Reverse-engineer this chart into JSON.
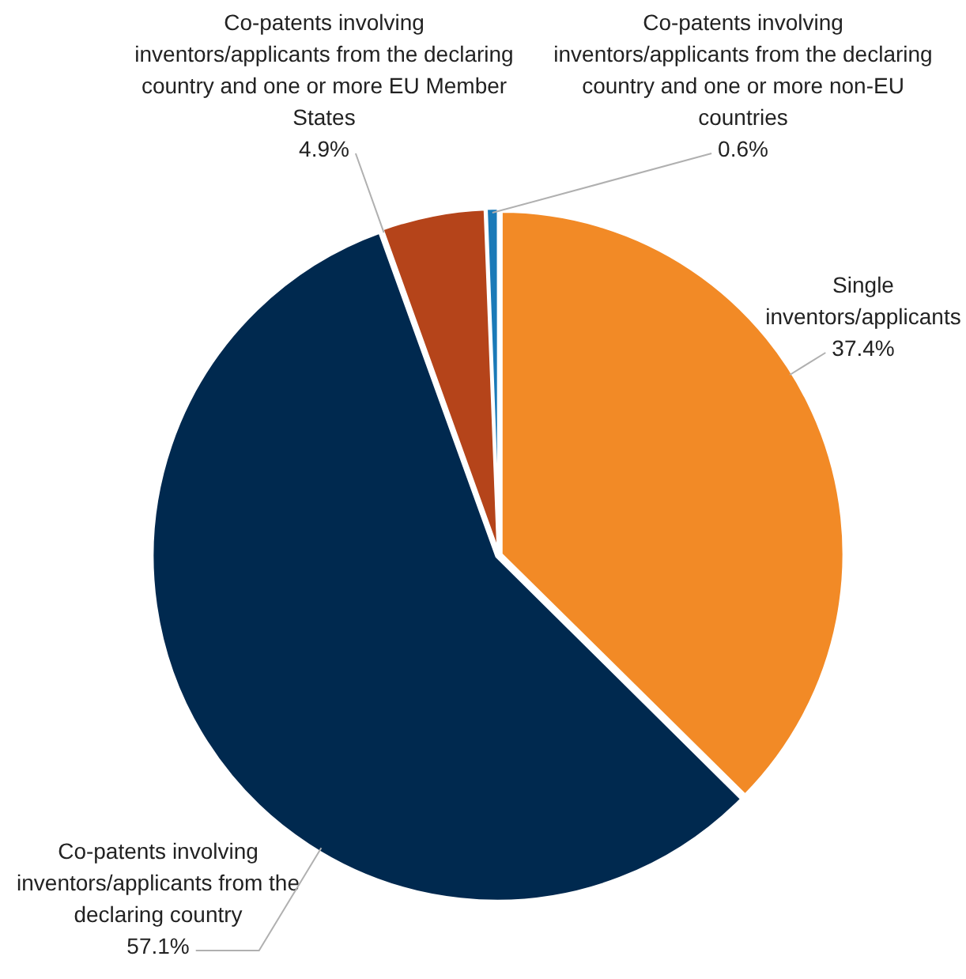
{
  "chart_data": {
    "type": "pie",
    "categories": [
      "Single inventors/applicants",
      "Co-patents involving inventors/applicants from the declaring country",
      "Co-patents involving inventors/applicants from the declaring country and one or more EU Member States",
      "Co-patents involving inventors/applicants from the declaring country and one or more non-EU countries"
    ],
    "values": [
      37.4,
      57.1,
      4.9,
      0.6
    ],
    "colors": [
      "#f28a26",
      "#00294f",
      "#b5441a",
      "#1a7ab8"
    ],
    "value_labels": [
      "37.4%",
      "57.1%",
      "4.9%",
      "0.6%"
    ],
    "legend": false
  }
}
